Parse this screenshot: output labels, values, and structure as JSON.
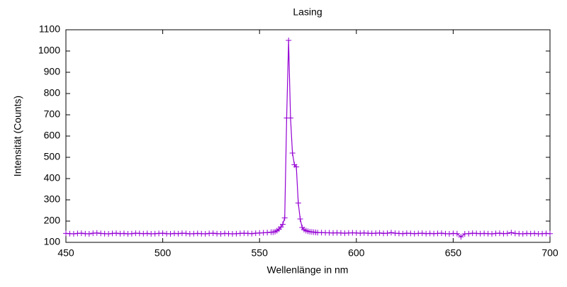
{
  "chart_data": {
    "type": "line",
    "title": "Lasing",
    "x_label": "Wellenlänge in nm",
    "y_label": "Intensität (Counts)",
    "xlim": [
      450,
      700
    ],
    "ylim": [
      100,
      1100
    ],
    "xticks": [
      450,
      500,
      550,
      600,
      650,
      700
    ],
    "yticks": [
      100,
      200,
      300,
      400,
      500,
      600,
      700,
      800,
      900,
      1000,
      1100
    ],
    "grid": false,
    "series": [
      {
        "color": "#9400d3",
        "x": [
          450,
          452,
          454,
          456,
          458,
          460,
          462,
          464,
          466,
          468,
          470,
          472,
          474,
          476,
          478,
          480,
          482,
          484,
          486,
          488,
          490,
          492,
          494,
          496,
          498,
          500,
          502,
          504,
          506,
          508,
          510,
          512,
          514,
          516,
          518,
          520,
          522,
          524,
          526,
          528,
          530,
          532,
          534,
          536,
          538,
          540,
          542,
          544,
          546,
          548,
          550,
          552,
          554,
          556,
          557,
          558,
          559,
          560,
          561,
          562,
          563,
          564,
          565,
          566,
          567,
          568,
          569,
          570,
          571,
          572,
          573,
          574,
          575,
          576,
          577,
          578,
          579,
          580,
          582,
          584,
          586,
          588,
          590,
          592,
          594,
          596,
          598,
          600,
          602,
          604,
          606,
          608,
          610,
          612,
          614,
          616,
          618,
          620,
          622,
          624,
          626,
          628,
          630,
          632,
          634,
          636,
          638,
          640,
          642,
          644,
          646,
          648,
          650,
          652,
          654,
          656,
          658,
          660,
          662,
          664,
          666,
          668,
          670,
          672,
          674,
          676,
          678,
          680,
          682,
          684,
          686,
          688,
          690,
          692,
          694,
          696,
          698,
          700
        ],
        "values": [
          142,
          141,
          140,
          142,
          143,
          141,
          140,
          143,
          144,
          142,
          141,
          140,
          142,
          143,
          141,
          142,
          140,
          141,
          143,
          142,
          141,
          142,
          140,
          141,
          142,
          143,
          141,
          140,
          142,
          141,
          143,
          142,
          140,
          141,
          142,
          141,
          140,
          142,
          143,
          141,
          140,
          142,
          141,
          140,
          141,
          142,
          143,
          142,
          141,
          143,
          144,
          145,
          146,
          148,
          148,
          150,
          155,
          162,
          172,
          185,
          215,
          685,
          1050,
          685,
          520,
          465,
          455,
          285,
          210,
          170,
          160,
          155,
          152,
          150,
          149,
          148,
          147,
          146,
          146,
          145,
          145,
          144,
          145,
          144,
          143,
          144,
          145,
          144,
          143,
          144,
          143,
          142,
          143,
          144,
          142,
          143,
          146,
          143,
          142,
          141,
          143,
          142,
          141,
          142,
          143,
          141,
          142,
          141,
          142,
          143,
          141,
          140,
          142,
          141,
          126,
          140,
          141,
          143,
          142,
          141,
          142,
          141,
          140,
          142,
          143,
          141,
          142,
          146,
          142,
          141,
          140,
          142,
          141,
          142,
          140,
          141,
          142,
          141
        ]
      }
    ]
  }
}
